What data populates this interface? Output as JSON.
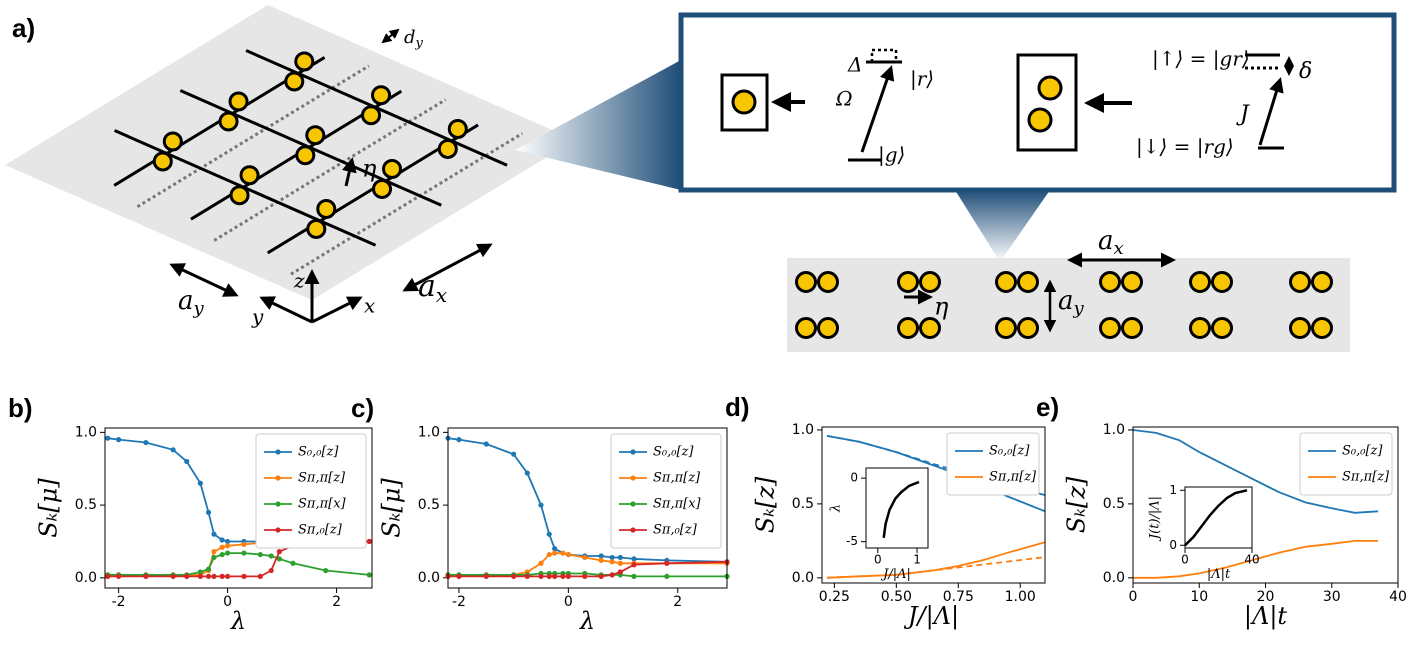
{
  "panel_a": {
    "label": "a)",
    "lattice": {
      "d_y": {
        "base": "d",
        "sub": "y"
      },
      "eta": "η",
      "a_y": {
        "base": "a",
        "sub": "y"
      },
      "a_x": {
        "base": "a",
        "sub": "x"
      },
      "axis_z": "z",
      "axis_y": "y",
      "axis_x": "x"
    },
    "levels": {
      "Delta": "Δ",
      "r": "|r⟩",
      "Omega": "Ω",
      "g": "|g⟩",
      "up": "|↑⟩ = |gr⟩",
      "delta": "δ",
      "J": "J",
      "down": "|↓⟩ = |rg⟩"
    },
    "strip": {
      "a_x": {
        "base": "a",
        "sub": "x"
      },
      "eta": "η",
      "a_y": {
        "base": "a",
        "sub": "y"
      }
    }
  },
  "chart_data": [
    {
      "type": "line",
      "label": "b)",
      "xlabel": "λ",
      "ylabel": "Sₖ[μ]",
      "markers": true,
      "legend": "upper right",
      "xlim": [
        -2.25,
        2.65
      ],
      "ylim": [
        -0.07,
        1.03
      ],
      "xticks": [
        -2,
        0,
        2
      ],
      "yticks": [
        {
          "value": 0,
          "label": "0.0"
        },
        0.5,
        {
          "value": 1,
          "label": "1.0"
        }
      ],
      "x": [
        -2.2,
        -2,
        -1.5,
        -1,
        -0.75,
        -0.5,
        -0.35,
        -0.25,
        -0.1,
        0,
        0.3,
        0.6,
        0.8,
        0.95,
        1.2,
        1.8,
        2.6
      ],
      "series": [
        {
          "name": "S₀,₀[z]",
          "color": "#1f77b4",
          "values": [
            0.96,
            0.95,
            0.93,
            0.88,
            0.8,
            0.65,
            0.45,
            0.3,
            0.26,
            0.25,
            0.25,
            0.25,
            0.25,
            0.25,
            0.25,
            0.25,
            0.25
          ]
        },
        {
          "name": "Sπ,π[z]",
          "color": "#ff7f0e",
          "values": [
            0.02,
            0.02,
            0.02,
            0.02,
            0.02,
            0.02,
            0.05,
            0.18,
            0.21,
            0.22,
            0.23,
            0.24,
            0.24,
            0.24,
            0.25,
            0.25,
            0.25
          ]
        },
        {
          "name": "Sπ,π[x]",
          "color": "#2ca02c",
          "values": [
            0.02,
            0.02,
            0.02,
            0.02,
            0.02,
            0.04,
            0.06,
            0.14,
            0.16,
            0.17,
            0.17,
            0.16,
            0.15,
            0.13,
            0.1,
            0.05,
            0.02
          ]
        },
        {
          "name": "Sπ,₀[z]",
          "color": "#d62728",
          "values": [
            0.01,
            0.01,
            0.01,
            0.01,
            0.01,
            0.01,
            0.01,
            0.01,
            0.01,
            0.01,
            0.01,
            0.01,
            0.05,
            0.18,
            0.22,
            0.24,
            0.25
          ]
        }
      ]
    },
    {
      "type": "line",
      "label": "c)",
      "xlabel": "λ",
      "ylabel": "Sₖ[μ]",
      "markers": true,
      "legend": "upper right",
      "xlim": [
        -2.2,
        2.9
      ],
      "ylim": [
        -0.07,
        1.03
      ],
      "xticks": [
        -2,
        0,
        2
      ],
      "yticks": [
        {
          "value": 0,
          "label": "0.0"
        },
        0.5,
        {
          "value": 1,
          "label": "1.0"
        }
      ],
      "x": [
        -2.2,
        -2,
        -1.5,
        -1,
        -0.75,
        -0.5,
        -0.35,
        -0.25,
        -0.1,
        0,
        0.3,
        0.6,
        0.8,
        0.95,
        1.2,
        1.8,
        2.9
      ],
      "series": [
        {
          "name": "S₀,₀[z]",
          "color": "#1f77b4",
          "values": [
            0.96,
            0.95,
            0.92,
            0.85,
            0.72,
            0.5,
            0.3,
            0.2,
            0.17,
            0.16,
            0.15,
            0.15,
            0.14,
            0.14,
            0.13,
            0.12,
            0.11
          ]
        },
        {
          "name": "Sπ,π[z]",
          "color": "#ff7f0e",
          "values": [
            0.02,
            0.02,
            0.02,
            0.02,
            0.04,
            0.1,
            0.16,
            0.17,
            0.17,
            0.16,
            0.14,
            0.12,
            0.11,
            0.1,
            0.1,
            0.1,
            0.1
          ]
        },
        {
          "name": "Sπ,π[x]",
          "color": "#2ca02c",
          "values": [
            0.02,
            0.02,
            0.02,
            0.02,
            0.02,
            0.03,
            0.03,
            0.03,
            0.03,
            0.03,
            0.03,
            0.02,
            0.02,
            0.02,
            0.01,
            0.01,
            0.01
          ]
        },
        {
          "name": "Sπ,₀[z]",
          "color": "#d62728",
          "values": [
            0.01,
            0.01,
            0.01,
            0.01,
            0.01,
            0.01,
            0.01,
            0.01,
            0.01,
            0.01,
            0.01,
            0.01,
            0.02,
            0.04,
            0.09,
            0.1,
            0.11
          ]
        }
      ]
    },
    {
      "type": "line",
      "label": "d)",
      "xlabel": "J/|Λ|",
      "ylabel": "Sₖ[z]",
      "legend": "upper right",
      "xlim": [
        0.2,
        1.1
      ],
      "ylim": [
        -0.035,
        1.02
      ],
      "xticks": [
        0.25,
        {
          "value": 0.5,
          "label": "0.50"
        },
        0.75,
        {
          "value": 1,
          "label": "1.00"
        }
      ],
      "yticks": [
        {
          "value": 0,
          "label": "0.0"
        },
        0.5,
        {
          "value": 1,
          "label": "1.0"
        }
      ],
      "x": [
        0.22,
        0.35,
        0.5,
        0.65,
        0.75,
        0.85,
        0.95,
        1.1
      ],
      "series": [
        {
          "name": "S₀,₀[z]",
          "color": "#1f77b4",
          "values": [
            0.96,
            0.92,
            0.85,
            0.76,
            0.7,
            0.62,
            0.55,
            0.45
          ]
        },
        {
          "color": "#1f77b4",
          "dashed": true,
          "values": [
            0.96,
            0.92,
            0.85,
            0.77,
            0.72,
            0.67,
            0.62,
            0.56
          ]
        },
        {
          "name": "Sπ,π[z]",
          "color": "#ff7f0e",
          "values": [
            0,
            0.01,
            0.02,
            0.05,
            0.08,
            0.12,
            0.17,
            0.24
          ]
        },
        {
          "color": "#ff7f0e",
          "dashed": true,
          "values": [
            0,
            0.01,
            0.02,
            0.05,
            0.07,
            0.09,
            0.11,
            0.14
          ]
        }
      ],
      "inset": {
        "xlabel": "J/|Λ|",
        "ylabel": "λ",
        "xlim": [
          -0.3,
          1.28
        ],
        "ylim": [
          -5.5,
          0.8
        ],
        "xticks": [
          0,
          1
        ],
        "yticks": [
          -5,
          0
        ],
        "x": [
          0.15,
          0.2,
          0.3,
          0.45,
          0.6,
          0.8,
          1.05
        ],
        "series": [
          {
            "color": "#000000",
            "values": [
              -4.7,
              -3.6,
              -2.5,
              -1.6,
              -1.1,
              -0.6,
              -0.3
            ]
          }
        ]
      }
    },
    {
      "type": "line",
      "label": "e)",
      "xlabel": "|Λ|t",
      "ylabel": "Sₖ[z]",
      "legend": "upper right",
      "xlim": [
        0,
        40
      ],
      "ylim": [
        -0.035,
        1.02
      ],
      "xticks": [
        0,
        10,
        20,
        30,
        40
      ],
      "yticks": [
        {
          "value": 0,
          "label": "0.0"
        },
        0.5,
        {
          "value": 1,
          "label": "1.0"
        }
      ],
      "x": [
        0,
        3.5,
        7,
        10,
        14,
        18,
        22,
        26,
        30,
        33.5,
        37
      ],
      "series": [
        {
          "name": "S₀,₀[z]",
          "color": "#1f77b4",
          "values": [
            1.0,
            0.98,
            0.93,
            0.85,
            0.76,
            0.67,
            0.58,
            0.51,
            0.47,
            0.44,
            0.45
          ]
        },
        {
          "name": "Sπ,π[z]",
          "color": "#ff7f0e",
          "values": [
            0,
            0,
            0.01,
            0.03,
            0.07,
            0.12,
            0.17,
            0.21,
            0.23,
            0.25,
            0.25
          ]
        }
      ],
      "inset": {
        "xlabel": "|Λ|t",
        "ylabel": "J(t)/|Λ|",
        "xlim": [
          0,
          40
        ],
        "ylim": [
          -0.05,
          1.06
        ],
        "xticks": [
          0,
          40
        ],
        "yticks": [
          0,
          1
        ],
        "x": [
          0,
          5,
          10,
          15,
          20,
          25,
          30,
          37
        ],
        "series": [
          {
            "color": "#000000",
            "values": [
              0,
              0.15,
              0.35,
              0.55,
              0.72,
              0.86,
              0.95,
              1.0
            ]
          }
        ]
      }
    }
  ]
}
